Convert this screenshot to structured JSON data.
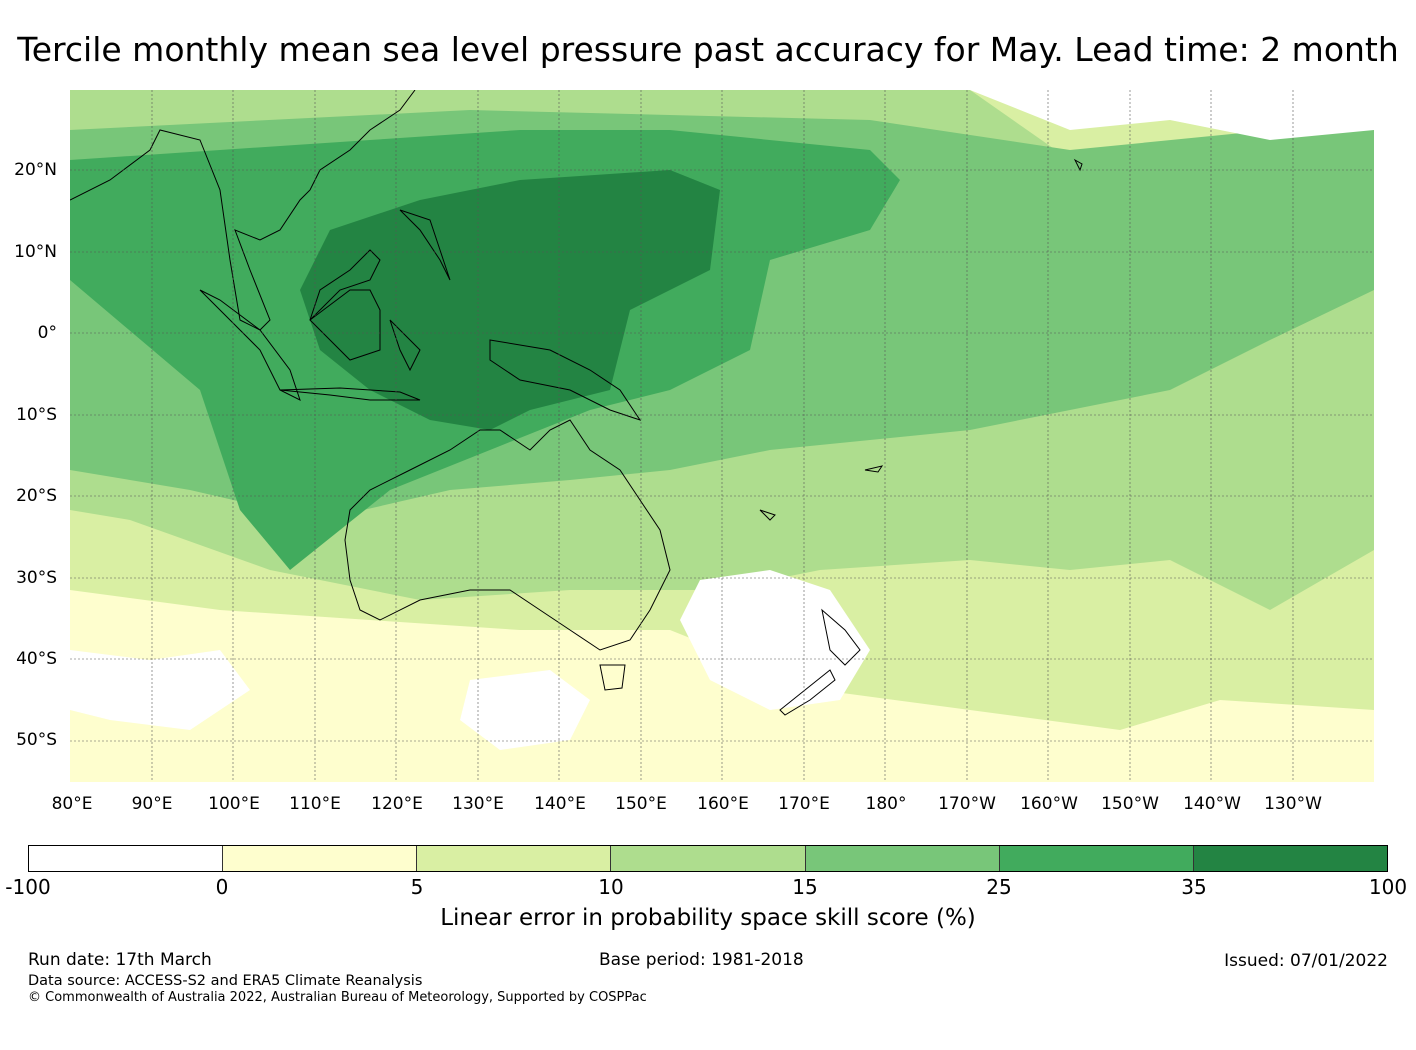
{
  "title": "Tercile monthly mean sea level pressure past accuracy for May. Lead time: 2 month",
  "map": {
    "lat_labels": [
      "20°N",
      "10°N",
      "0°",
      "10°S",
      "20°S",
      "30°S",
      "40°S",
      "50°S"
    ],
    "lon_labels": [
      "80°E",
      "90°E",
      "100°E",
      "110°E",
      "120°E",
      "130°E",
      "140°E",
      "150°E",
      "160°E",
      "170°E",
      "180°",
      "170°W",
      "160°W",
      "150°W",
      "140°W",
      "130°W"
    ],
    "land_outlines": [
      "Southeast Asia",
      "Maritime Continent",
      "New Guinea",
      "Australia",
      "Tasmania",
      "New Zealand",
      "Pacific islands"
    ]
  },
  "colorbar": {
    "label": "Linear error in probability space skill score (%)",
    "ticks": [
      "-100",
      "0",
      "5",
      "10",
      "15",
      "25",
      "35",
      "100"
    ],
    "colors": [
      "#ffffff",
      "#fefece",
      "#d9efa3",
      "#aedd8e",
      "#78c679",
      "#41ab5d",
      "#238443"
    ]
  },
  "footer": {
    "run_date": "Run date: 17th March",
    "base_period": "Base period: 1981-2018",
    "issued": "Issued: 07/01/2022",
    "data_source": "Data source: ACCESS-S2 and ERA5 Climate Reanalysis",
    "copyright": "© Commonwealth of Australia 2022, Australian Bureau of Meteorology, Supported by COSPPac"
  }
}
